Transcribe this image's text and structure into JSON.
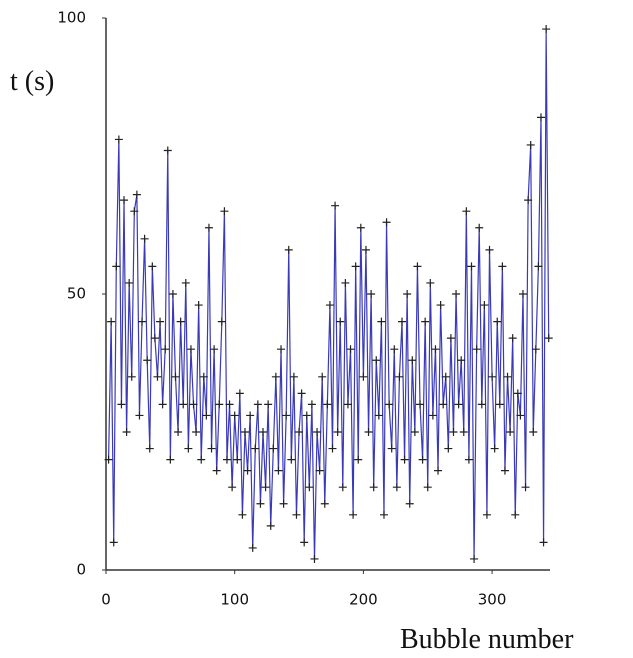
{
  "chart_data": {
    "type": "line",
    "xlabel": "Bubble number",
    "ylabel": "t (s)",
    "xlim": [
      0,
      345
    ],
    "xticks": [
      0,
      100,
      200,
      300
    ],
    "ylim": [
      0,
      100
    ],
    "yticks": [
      0,
      50,
      100
    ],
    "grid": false,
    "series": [
      {
        "color": "#3a3ab8",
        "marker_color": "#222222",
        "x": [
          2,
          4,
          6,
          8,
          10,
          12,
          14,
          16,
          18,
          20,
          22,
          24,
          26,
          28,
          30,
          32,
          34,
          36,
          38,
          40,
          42,
          44,
          46,
          48,
          50,
          52,
          54,
          56,
          58,
          60,
          62,
          64,
          66,
          68,
          70,
          72,
          74,
          76,
          78,
          80,
          82,
          84,
          86,
          88,
          90,
          92,
          94,
          96,
          98,
          100,
          102,
          104,
          106,
          108,
          110,
          112,
          114,
          116,
          118,
          120,
          122,
          124,
          126,
          128,
          130,
          132,
          134,
          136,
          138,
          140,
          142,
          144,
          146,
          148,
          150,
          152,
          154,
          156,
          158,
          160,
          162,
          164,
          166,
          168,
          170,
          172,
          174,
          176,
          178,
          180,
          182,
          184,
          186,
          188,
          190,
          192,
          194,
          196,
          198,
          200,
          202,
          204,
          206,
          208,
          210,
          212,
          214,
          216,
          218,
          220,
          222,
          224,
          226,
          228,
          230,
          232,
          234,
          236,
          238,
          240,
          242,
          244,
          246,
          248,
          250,
          252,
          254,
          256,
          258,
          260,
          262,
          264,
          266,
          268,
          270,
          272,
          274,
          276,
          278,
          280,
          282,
          284,
          286,
          288,
          290,
          292,
          294,
          296,
          298,
          300,
          302,
          304,
          306,
          308,
          310,
          312,
          314,
          316,
          318,
          320,
          322,
          324,
          326,
          328,
          330,
          332,
          334,
          336,
          338,
          340,
          342,
          344
        ],
        "values": [
          20,
          45,
          5,
          55,
          78,
          30,
          67,
          25,
          52,
          35,
          65,
          68,
          28,
          45,
          60,
          38,
          22,
          55,
          42,
          35,
          45,
          30,
          40,
          76,
          20,
          50,
          35,
          25,
          45,
          30,
          52,
          22,
          40,
          30,
          25,
          48,
          20,
          35,
          28,
          62,
          22,
          40,
          18,
          30,
          45,
          65,
          20,
          30,
          15,
          28,
          20,
          32,
          10,
          25,
          18,
          28,
          4,
          22,
          30,
          12,
          25,
          15,
          30,
          8,
          22,
          35,
          18,
          40,
          12,
          28,
          58,
          20,
          35,
          10,
          25,
          32,
          5,
          28,
          15,
          30,
          2,
          25,
          18,
          35,
          12,
          30,
          48,
          22,
          66,
          25,
          45,
          15,
          52,
          30,
          40,
          10,
          55,
          20,
          62,
          35,
          58,
          25,
          50,
          15,
          38,
          28,
          45,
          10,
          63,
          30,
          22,
          40,
          15,
          35,
          45,
          20,
          50,
          12,
          38,
          25,
          55,
          30,
          20,
          45,
          15,
          52,
          28,
          40,
          18,
          48,
          30,
          35,
          22,
          42,
          25,
          50,
          30,
          38,
          25,
          65,
          20,
          55,
          2,
          40,
          62,
          30,
          48,
          10,
          58,
          35,
          22,
          45,
          30,
          55,
          18,
          35,
          25,
          42,
          10,
          32,
          28,
          50,
          15,
          67,
          77,
          25,
          40,
          55,
          82,
          5,
          98,
          42
        ]
      }
    ]
  }
}
